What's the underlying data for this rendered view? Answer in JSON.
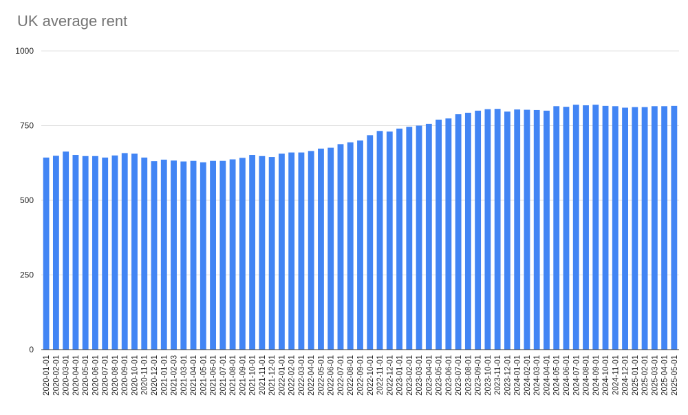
{
  "chart_data": {
    "type": "bar",
    "title": "UK average rent",
    "xlabel": "",
    "ylabel": "",
    "ylim": [
      0,
      1000
    ],
    "yticks": [
      0,
      250,
      500,
      750,
      1000
    ],
    "grid": true,
    "colors": {
      "bar": "#4285f4",
      "grid": "#e0e0e0",
      "baseline": "#333333",
      "title": "#757575"
    },
    "categories": [
      "2020-01-01",
      "2020-02-01",
      "2020-03-01",
      "2020-04-01",
      "2020-05-01",
      "2020-06-01",
      "2020-07-01",
      "2020-08-01",
      "2020-09-01",
      "2020-10-01",
      "2020-11-01",
      "2020-12-01",
      "2021-01-01",
      "2021-02-03",
      "2021-03-01",
      "2021-04-01",
      "2021-05-01",
      "2021-06-01",
      "2021-07-01",
      "2021-08-01",
      "2021-09-01",
      "2021-10-01",
      "2021-11-01",
      "2021-12-01",
      "2022-01-01",
      "2022-02-01",
      "2022-03-01",
      "2022-04-01",
      "2022-05-01",
      "2022-06-01",
      "2022-07-01",
      "2022-08-01",
      "2022-09-01",
      "2022-10-01",
      "2022-11-01",
      "2022-12-01",
      "2023-01-01",
      "2023-02-01",
      "2023-03-01",
      "2023-04-01",
      "2023-05-01",
      "2023-06-01",
      "2023-07-01",
      "2023-08-01",
      "2023-09-01",
      "2023-10-01",
      "2023-11-01",
      "2023-12-01",
      "2024-01-01",
      "2024-02-01",
      "2024-03-01",
      "2024-04-01",
      "2024-05-01",
      "2024-06-01",
      "2024-07-01",
      "2024-08-01",
      "2024-09-01",
      "2024-10-01",
      "2024-11-01",
      "2024-12-01",
      "2025-01-01",
      "2025-02-01",
      "2025-03-01",
      "2025-04-01",
      "2025-05-01"
    ],
    "values": [
      643,
      649,
      663,
      652,
      648,
      648,
      643,
      650,
      658,
      656,
      643,
      631,
      636,
      633,
      630,
      632,
      627,
      632,
      632,
      637,
      642,
      652,
      648,
      645,
      656,
      660,
      660,
      665,
      673,
      676,
      688,
      694,
      700,
      718,
      732,
      730,
      740,
      746,
      750,
      756,
      770,
      774,
      788,
      793,
      800,
      805,
      806,
      797,
      804,
      803,
      802,
      800,
      815,
      813,
      820,
      818,
      820,
      816,
      815,
      810,
      812,
      812,
      815,
      815,
      816
    ]
  }
}
